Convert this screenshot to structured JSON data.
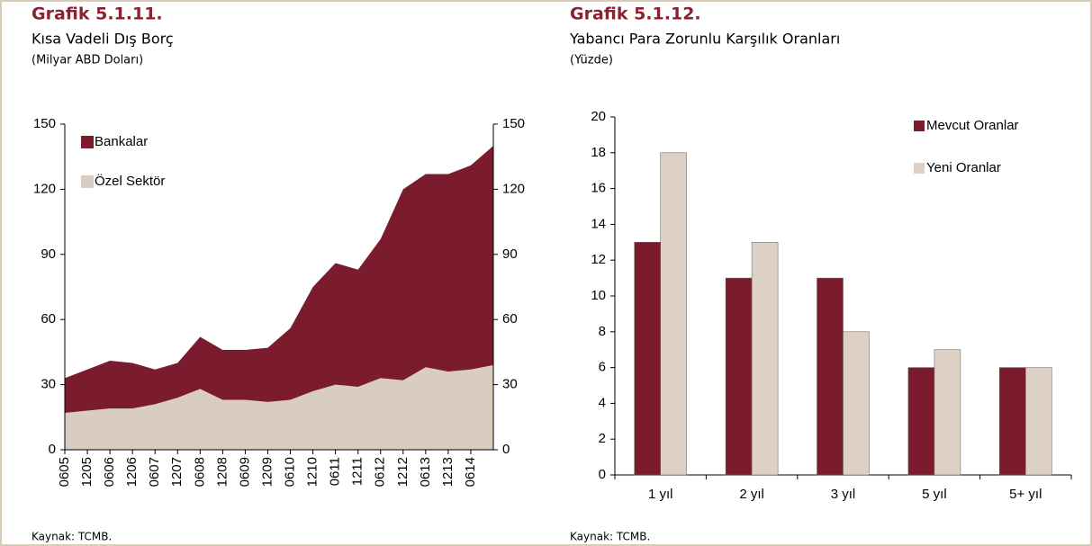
{
  "chart_data": [
    {
      "type": "area",
      "stacked": true,
      "title": "Grafik 5.1.11.",
      "subtitle": "Kısa Vadeli Dış Borç",
      "unit": "(Milyar ABD Doları)",
      "source": "Kaynak: TCMB.",
      "x": [
        "0605",
        "1205",
        "0606",
        "1206",
        "0607",
        "1207",
        "0608",
        "1208",
        "0609",
        "1209",
        "0610",
        "1210",
        "0611",
        "1211",
        "0612",
        "1212",
        "0613",
        "1213",
        "0614",
        null
      ],
      "series": [
        {
          "name": "Özel Sektör",
          "color": "#d9cdc1",
          "values": [
            17,
            18,
            19,
            19,
            21,
            24,
            28,
            23,
            23,
            22,
            23,
            27,
            30,
            29,
            33,
            32,
            38,
            36,
            37,
            39
          ]
        },
        {
          "name": "Bankalar",
          "color": "#7b1c2e",
          "values": [
            16,
            19,
            22,
            21,
            16,
            16,
            24,
            23,
            23,
            25,
            33,
            48,
            56,
            54,
            64,
            88,
            89,
            91,
            94,
            101
          ]
        }
      ],
      "ylim": [
        0,
        150
      ],
      "yticks": [
        0,
        30,
        60,
        90,
        120,
        150
      ],
      "y2lim": [
        0,
        150
      ],
      "y2ticks": [
        0,
        30,
        60,
        90,
        120,
        150
      ],
      "legend": "upper left"
    },
    {
      "type": "bar",
      "title": "Grafik 5.1.12.",
      "subtitle": "Yabancı Para Zorunlu Karşılık Oranları",
      "unit": "(Yüzde)",
      "source": "Kaynak: TCMB.",
      "categories": [
        "1 yıl",
        "2 yıl",
        "3 yıl",
        "5 yıl",
        "5+ yıl"
      ],
      "series": [
        {
          "name": "Mevcut Oranlar",
          "color": "#7b1c2e",
          "values": [
            13,
            11,
            11,
            6,
            6
          ]
        },
        {
          "name": "Yeni Oranlar",
          "color": "#ddd0c4",
          "values": [
            18,
            13,
            8,
            7,
            6
          ]
        }
      ],
      "ylim": [
        0,
        20
      ],
      "yticks": [
        0,
        2,
        4,
        6,
        8,
        10,
        12,
        14,
        16,
        18,
        20
      ],
      "legend": "upper right"
    }
  ]
}
